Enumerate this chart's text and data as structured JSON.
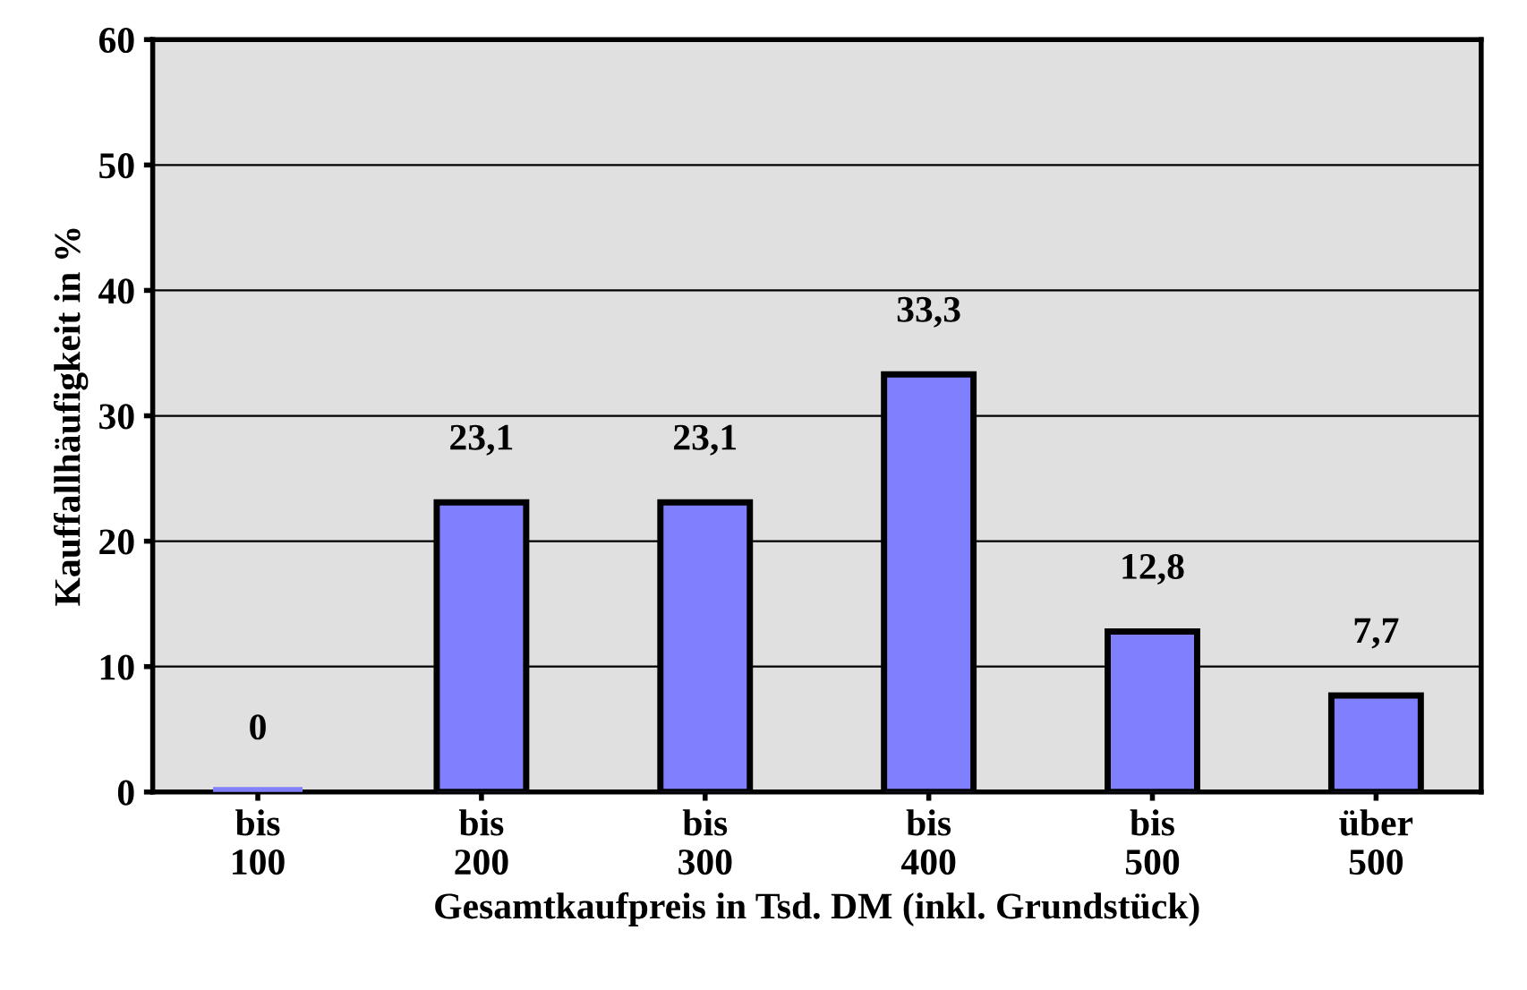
{
  "chart_data": {
    "type": "bar",
    "xlabel": "Gesamtkaufpreis in Tsd. DM (inkl. Grundstück)",
    "ylabel": "Kauffallhäufigkeit in %",
    "categories": [
      "bis\n100",
      "bis\n200",
      "bis\n300",
      "bis\n400",
      "bis\n500",
      "über\n500"
    ],
    "values": [
      0,
      23.1,
      23.1,
      33.3,
      12.8,
      7.7
    ],
    "value_labels": [
      "0",
      "23,1",
      "23,1",
      "33,3",
      "12,8",
      "7,7"
    ],
    "color": "#8080ff",
    "ylim": [
      0,
      60
    ],
    "yticks": [
      0,
      10,
      20,
      30,
      40,
      50,
      60
    ],
    "grid": "y"
  }
}
